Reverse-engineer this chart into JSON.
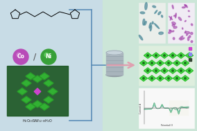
{
  "bg_left": "#c8dce6",
  "bg_right": "#cce6d8",
  "bracket_color": "#5b8db8",
  "co_color": "#b84cb8",
  "ni_color": "#38a038",
  "co_label": "Co",
  "ni_label": "Ni",
  "arrow_color": "#e0a0b0",
  "cyl_color": "#a8b4bc",
  "cyl_top": "#c8d4dc",
  "cyl_stripe": "#909ea8",
  "micro1_bg": "#edf0ec",
  "micro2_bg": "#f0eaf2",
  "crystal_bg": "#ddeedd",
  "cv_bg": "#f5f5f5",
  "pom_bg": "#1a5520",
  "pom_green1": "#33bb33",
  "pom_green2": "#228822",
  "pom_pink": "#cc44cc",
  "formula": "H₄O₀40SiW₁₂·xH₂O"
}
